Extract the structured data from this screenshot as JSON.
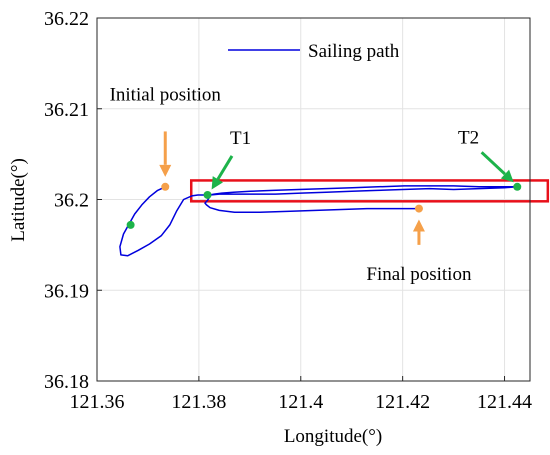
{
  "chart_data": {
    "type": "line",
    "xlabel": "Longitude(°)",
    "ylabel": "Latitude(°)",
    "xlim": [
      121.36,
      121.445
    ],
    "ylim": [
      36.18,
      36.22
    ],
    "xticks": [
      121.36,
      121.38,
      121.4,
      121.42,
      121.44
    ],
    "xtick_labels": [
      "121.36",
      "121.38",
      "121.4",
      "121.42",
      "121.44"
    ],
    "yticks": [
      36.18,
      36.19,
      36.2,
      36.21,
      36.22
    ],
    "ytick_labels": [
      "36.18",
      "36.19",
      "36.2",
      "36.21",
      "36.22"
    ],
    "grid": true,
    "legend": {
      "position": "top-center",
      "entries": [
        "Sailing path"
      ]
    },
    "series": [
      {
        "name": "Sailing path",
        "color": "#0000dd",
        "x": [
          121.3734,
          121.3719,
          121.3703,
          121.3688,
          121.3674,
          121.3664,
          121.3652,
          121.3645,
          121.3647,
          121.366,
          121.3681,
          121.3703,
          121.3726,
          121.3743,
          121.3756,
          121.377,
          121.3786,
          121.3798,
          121.3807,
          121.3811,
          121.3815,
          121.3821,
          121.383,
          121.3845,
          121.3868,
          121.3901,
          121.3945,
          121.3996,
          121.4049,
          121.4101,
          121.4152,
          121.4203,
          121.425,
          121.43,
          121.435,
          121.44,
          121.4425,
          121.44,
          121.435,
          121.43,
          121.4253,
          121.42,
          121.415,
          121.41,
          121.405,
          121.4,
          121.395,
          121.39,
          121.386,
          121.384,
          121.3822,
          121.382,
          121.3817,
          121.3812,
          121.3815,
          121.3822,
          121.384,
          121.387,
          121.392,
          121.398,
          121.403,
          121.408,
          121.413,
          121.418,
          121.421,
          121.4232
        ],
        "y": [
          36.2014,
          36.201,
          36.2003,
          36.1994,
          36.1984,
          36.1974,
          36.1962,
          36.1948,
          36.1939,
          36.1938,
          36.1944,
          36.1951,
          36.196,
          36.1972,
          36.1987,
          36.2,
          36.2004,
          36.2005,
          36.2005,
          36.2005,
          36.2005,
          36.2005,
          36.2006,
          36.2007,
          36.2008,
          36.2009,
          36.201,
          36.2011,
          36.2012,
          36.2013,
          36.2014,
          36.2015,
          36.2015,
          36.2015,
          36.2014,
          36.2014,
          36.2014,
          36.2013,
          36.2012,
          36.2011,
          36.2012,
          36.2011,
          36.201,
          36.2009,
          36.2008,
          36.2007,
          36.2006,
          36.2006,
          36.2006,
          36.2006,
          36.2005,
          36.2002,
          36.1999,
          36.1996,
          36.1994,
          36.1991,
          36.1988,
          36.1986,
          36.1986,
          36.1987,
          36.1988,
          36.1989,
          36.199,
          36.199,
          36.199,
          36.199
        ]
      }
    ],
    "points": [
      {
        "x": 121.3734,
        "y": 36.2014,
        "color": "#f5a04a"
      },
      {
        "x": 121.4232,
        "y": 36.199,
        "color": "#f5a04a"
      },
      {
        "x": 121.3817,
        "y": 36.2005,
        "color": "#1db34a"
      },
      {
        "x": 121.4425,
        "y": 36.2014,
        "color": "#1db34a"
      },
      {
        "x": 121.3666,
        "y": 36.1972,
        "color": "#1db34a"
      }
    ],
    "rectangle": {
      "x0": 121.3785,
      "x1": 121.4485,
      "y0": 36.1998,
      "y1": 36.2021,
      "color": "#e8101a"
    },
    "annotations": [
      {
        "id": "initial",
        "text": "Initial position",
        "color": "#f5a04a",
        "arrow_from": [
          121.3734,
          36.2075
        ],
        "arrow_to": [
          121.3734,
          36.2025
        ]
      },
      {
        "id": "final",
        "text": "Final position",
        "color": "#f5a04a",
        "arrow_from": [
          121.4232,
          36.195
        ],
        "arrow_to": [
          121.4232,
          36.1978
        ]
      },
      {
        "id": "t1",
        "text": "T1",
        "color": "#1db34a",
        "arrow_from": [
          121.3865,
          36.2048
        ],
        "arrow_to": [
          121.3825,
          36.2011
        ]
      },
      {
        "id": "t2",
        "text": "T2",
        "color": "#1db34a",
        "arrow_from": [
          121.4355,
          36.2052
        ],
        "arrow_to": [
          121.4418,
          36.2019
        ]
      }
    ]
  }
}
